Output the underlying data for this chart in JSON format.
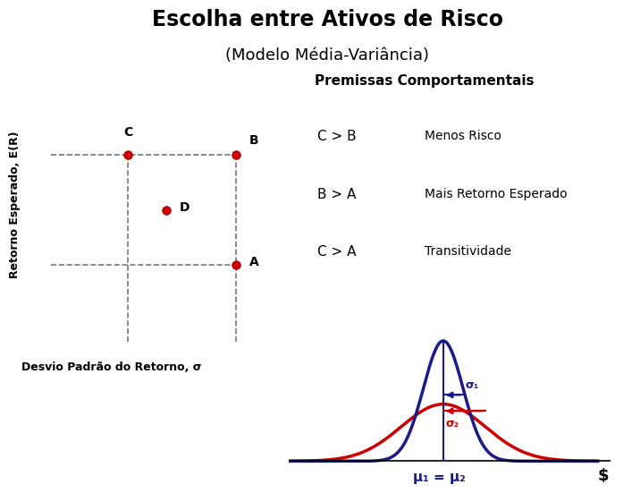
{
  "title_line1": "Escolha entre Ativos de Risco",
  "title_line2": "(Modelo Média-Variância)",
  "ylabel": "Retorno Esperado, E(R)",
  "xlabel": "Desvio Padrão do Retorno, σ",
  "points": {
    "C": [
      0.3,
      0.68
    ],
    "B": [
      0.72,
      0.68
    ],
    "D": [
      0.45,
      0.48
    ],
    "A": [
      0.72,
      0.28
    ]
  },
  "point_color": "#cc0000",
  "dashed_color": "#777777",
  "premissas_title": "Premissas Comportamentais",
  "premissas": [
    [
      "C > B",
      "Menos Risco"
    ],
    [
      "B > A",
      "Mais Retorno Esperado"
    ],
    [
      "C > A",
      "Transitividade"
    ]
  ],
  "gauss1_sigma": 0.045,
  "gauss1_color": "#1a1a8c",
  "gauss2_sigma": 0.095,
  "gauss2_color": "#cc0000",
  "mu_label": "μ₁ = μ₂",
  "dollar_label": "$",
  "sigma1_label": "σ₁",
  "sigma2_label": "σ₂",
  "bg_color": "#ffffff",
  "text_color": "#000000"
}
